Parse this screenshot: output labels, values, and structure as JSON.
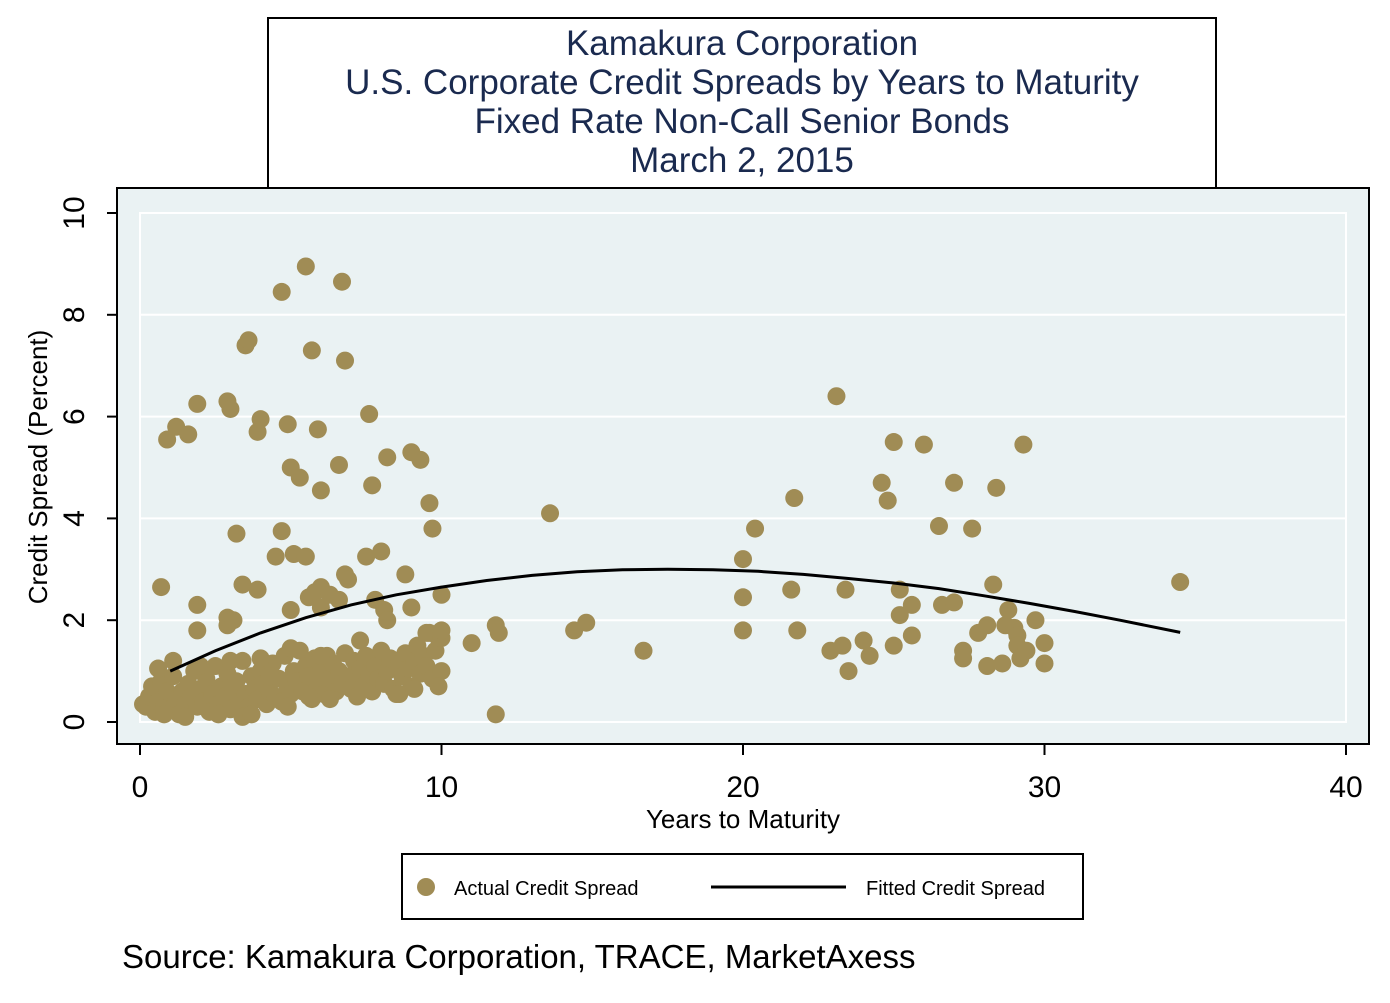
{
  "colors": {
    "plot_background": "#eaf2f3",
    "grid": "#ffffff",
    "points": "#a08c55",
    "line": "#000000",
    "title": "#1a2a4f",
    "frame": "#000000"
  },
  "chart_data": {
    "type": "scatter",
    "title": [
      "Kamakura Corporation",
      "U.S. Corporate Credit Spreads by Years to Maturity",
      "Fixed Rate Non-Call Senior Bonds",
      "March 2, 2015"
    ],
    "xlabel": "Years to Maturity",
    "ylabel": "Credit Spread (Percent)",
    "xlim": [
      0,
      40
    ],
    "ylim": [
      0,
      10
    ],
    "xticks": [
      0,
      10,
      20,
      30,
      40
    ],
    "yticks": [
      0,
      2,
      4,
      6,
      8,
      10
    ],
    "grid": true,
    "legend_position": "bottom",
    "legend": [
      "Actual Credit Spread",
      "Fitted Credit Spread"
    ],
    "note": "Source: Kamakura Corporation, TRACE, MarketAxess",
    "series": [
      {
        "name": "Actual Credit Spread",
        "type": "scatter",
        "points": [
          [
            0.1,
            0.35
          ],
          [
            0.2,
            0.3
          ],
          [
            0.3,
            0.5
          ],
          [
            0.4,
            0.7
          ],
          [
            0.5,
            0.2
          ],
          [
            0.6,
            0.4
          ],
          [
            0.7,
            0.8
          ],
          [
            0.8,
            0.3
          ],
          [
            0.9,
            0.6
          ],
          [
            1.0,
            0.25
          ],
          [
            1.1,
            0.9
          ],
          [
            1.2,
            0.45
          ],
          [
            1.3,
            0.15
          ],
          [
            1.4,
            0.6
          ],
          [
            1.5,
            0.35
          ],
          [
            1.6,
            0.75
          ],
          [
            1.7,
            0.5
          ],
          [
            1.8,
            1.0
          ],
          [
            1.9,
            0.3
          ],
          [
            2.0,
            0.65
          ],
          [
            2.1,
            0.4
          ],
          [
            2.2,
            0.85
          ],
          [
            2.3,
            0.2
          ],
          [
            2.4,
            0.55
          ],
          [
            2.5,
            1.1
          ],
          [
            2.6,
            0.35
          ],
          [
            2.7,
            0.7
          ],
          [
            2.8,
            0.5
          ],
          [
            2.9,
            0.95
          ],
          [
            3.0,
            0.25
          ],
          [
            3.1,
            0.6
          ],
          [
            3.2,
            0.8
          ],
          [
            3.3,
            0.4
          ],
          [
            3.4,
            1.2
          ],
          [
            3.5,
            0.55
          ],
          [
            3.6,
            0.3
          ],
          [
            3.7,
            0.9
          ],
          [
            3.8,
            0.65
          ],
          [
            3.9,
            0.45
          ],
          [
            4.0,
            1.0
          ],
          [
            4.1,
            0.75
          ],
          [
            4.2,
            0.35
          ],
          [
            4.3,
            0.6
          ],
          [
            4.4,
            1.15
          ],
          [
            4.5,
            0.5
          ],
          [
            4.6,
            0.85
          ],
          [
            4.7,
            0.4
          ],
          [
            4.8,
            1.3
          ],
          [
            4.9,
            0.7
          ],
          [
            5.0,
            0.55
          ],
          [
            5.1,
            1.0
          ],
          [
            5.2,
            0.8
          ],
          [
            5.3,
            1.4
          ],
          [
            5.4,
            0.6
          ],
          [
            5.5,
            1.1
          ],
          [
            5.6,
            0.9
          ],
          [
            5.7,
            0.45
          ],
          [
            5.8,
            1.25
          ],
          [
            5.9,
            0.7
          ],
          [
            6.0,
            1.0
          ],
          [
            6.1,
            0.55
          ],
          [
            6.2,
            1.3
          ],
          [
            6.3,
            0.85
          ],
          [
            6.4,
            1.15
          ],
          [
            6.5,
            0.6
          ],
          [
            6.6,
            1.0
          ],
          [
            6.7,
            0.75
          ],
          [
            6.8,
            1.35
          ],
          [
            6.9,
            0.9
          ],
          [
            7.0,
            0.65
          ],
          [
            7.1,
            1.2
          ],
          [
            7.2,
            0.8
          ],
          [
            7.3,
            1.05
          ],
          [
            7.4,
            0.7
          ],
          [
            7.5,
            1.3
          ],
          [
            7.6,
            0.95
          ],
          [
            7.7,
            0.6
          ],
          [
            7.8,
            1.1
          ],
          [
            7.9,
            0.85
          ],
          [
            8.0,
            1.4
          ],
          [
            8.1,
            0.75
          ],
          [
            8.2,
            1.0
          ],
          [
            8.3,
            1.25
          ],
          [
            8.4,
            0.65
          ],
          [
            8.5,
            0.55
          ],
          [
            8.6,
            1.15
          ],
          [
            8.7,
            0.9
          ],
          [
            8.8,
            1.35
          ],
          [
            8.9,
            1.05
          ],
          [
            9.0,
            0.7
          ],
          [
            9.1,
            1.2
          ],
          [
            9.2,
            1.5
          ],
          [
            9.3,
            0.95
          ],
          [
            9.4,
            1.3
          ],
          [
            9.5,
            1.1
          ],
          [
            9.6,
            1.75
          ],
          [
            9.7,
            0.85
          ],
          [
            9.8,
            1.4
          ],
          [
            9.9,
            1.65
          ],
          [
            10.0,
            1.0
          ],
          [
            0.6,
            1.05
          ],
          [
            1.1,
            1.2
          ],
          [
            2.0,
            1.1
          ],
          [
            3.0,
            1.2
          ],
          [
            4.0,
            1.25
          ],
          [
            5.0,
            1.45
          ],
          [
            6.0,
            1.3
          ],
          [
            0.8,
            0.15
          ],
          [
            1.5,
            0.1
          ],
          [
            2.6,
            0.15
          ],
          [
            3.4,
            0.1
          ],
          [
            3.7,
            0.15
          ],
          [
            4.9,
            0.3
          ],
          [
            5.6,
            0.5
          ],
          [
            6.3,
            0.45
          ],
          [
            7.2,
            0.5
          ],
          [
            8.6,
            0.55
          ],
          [
            9.1,
            0.65
          ],
          [
            9.9,
            0.7
          ],
          [
            4.3,
            0.9
          ],
          [
            0.7,
            2.65
          ],
          [
            1.9,
            1.8
          ],
          [
            1.9,
            2.3
          ],
          [
            2.9,
            1.9
          ],
          [
            2.9,
            2.05
          ],
          [
            3.1,
            2.0
          ],
          [
            3.2,
            3.7
          ],
          [
            3.4,
            2.7
          ],
          [
            3.9,
            2.6
          ],
          [
            4.5,
            3.25
          ],
          [
            4.7,
            3.75
          ],
          [
            5.0,
            2.2
          ],
          [
            5.1,
            3.3
          ],
          [
            5.5,
            3.25
          ],
          [
            5.6,
            2.45
          ],
          [
            5.8,
            2.55
          ],
          [
            6.0,
            2.65
          ],
          [
            6.0,
            2.25
          ],
          [
            6.3,
            2.5
          ],
          [
            6.6,
            2.4
          ],
          [
            6.8,
            2.9
          ],
          [
            6.9,
            2.8
          ],
          [
            7.3,
            1.6
          ],
          [
            7.5,
            3.25
          ],
          [
            7.8,
            2.4
          ],
          [
            8.0,
            3.35
          ],
          [
            8.1,
            2.2
          ],
          [
            8.2,
            2.0
          ],
          [
            8.8,
            2.9
          ],
          [
            9.0,
            2.25
          ],
          [
            9.5,
            1.75
          ],
          [
            10.0,
            1.65
          ],
          [
            10.0,
            2.5
          ],
          [
            10.0,
            1.8
          ],
          [
            0.9,
            5.55
          ],
          [
            1.2,
            5.8
          ],
          [
            1.6,
            5.65
          ],
          [
            1.9,
            6.25
          ],
          [
            2.9,
            6.3
          ],
          [
            3.0,
            6.15
          ],
          [
            3.5,
            7.4
          ],
          [
            3.6,
            7.5
          ],
          [
            3.9,
            5.7
          ],
          [
            4.0,
            5.95
          ],
          [
            4.7,
            8.45
          ],
          [
            4.9,
            5.85
          ],
          [
            5.0,
            5.0
          ],
          [
            5.3,
            4.8
          ],
          [
            5.5,
            8.95
          ],
          [
            5.7,
            7.3
          ],
          [
            5.9,
            5.75
          ],
          [
            6.0,
            4.55
          ],
          [
            6.6,
            5.05
          ],
          [
            6.7,
            8.65
          ],
          [
            6.8,
            7.1
          ],
          [
            7.6,
            6.05
          ],
          [
            7.7,
            4.65
          ],
          [
            8.2,
            5.2
          ],
          [
            9.0,
            5.3
          ],
          [
            9.3,
            5.15
          ],
          [
            9.6,
            4.3
          ],
          [
            9.7,
            3.8
          ],
          [
            11.0,
            1.55
          ],
          [
            11.8,
            1.9
          ],
          [
            11.9,
            1.75
          ],
          [
            11.8,
            0.15
          ],
          [
            13.6,
            4.1
          ],
          [
            14.4,
            1.8
          ],
          [
            14.8,
            1.95
          ],
          [
            16.7,
            1.4
          ],
          [
            20.0,
            3.2
          ],
          [
            20.0,
            2.45
          ],
          [
            20.0,
            1.8
          ],
          [
            20.4,
            3.8
          ],
          [
            21.6,
            2.6
          ],
          [
            21.7,
            4.4
          ],
          [
            21.8,
            1.8
          ],
          [
            22.9,
            1.4
          ],
          [
            23.1,
            6.4
          ],
          [
            23.3,
            1.5
          ],
          [
            23.4,
            2.6
          ],
          [
            23.5,
            1.0
          ],
          [
            24.0,
            1.6
          ],
          [
            24.2,
            1.3
          ],
          [
            24.6,
            4.7
          ],
          [
            24.8,
            4.35
          ],
          [
            25.0,
            5.5
          ],
          [
            25.0,
            1.5
          ],
          [
            25.2,
            2.6
          ],
          [
            25.2,
            2.1
          ],
          [
            25.6,
            2.3
          ],
          [
            25.6,
            1.7
          ],
          [
            26.0,
            5.45
          ],
          [
            26.5,
            3.85
          ],
          [
            26.6,
            2.3
          ],
          [
            27.0,
            4.7
          ],
          [
            27.0,
            2.35
          ],
          [
            27.3,
            1.4
          ],
          [
            27.3,
            1.25
          ],
          [
            27.6,
            3.8
          ],
          [
            27.8,
            1.75
          ],
          [
            28.1,
            1.9
          ],
          [
            28.1,
            1.1
          ],
          [
            28.3,
            2.7
          ],
          [
            28.4,
            4.6
          ],
          [
            28.6,
            1.15
          ],
          [
            28.7,
            1.9
          ],
          [
            28.8,
            2.2
          ],
          [
            29.0,
            1.85
          ],
          [
            29.1,
            1.7
          ],
          [
            29.1,
            1.5
          ],
          [
            29.2,
            1.25
          ],
          [
            29.3,
            5.45
          ],
          [
            29.4,
            1.4
          ],
          [
            29.7,
            2.0
          ],
          [
            30.0,
            1.55
          ],
          [
            30.0,
            1.15
          ],
          [
            34.5,
            2.75
          ]
        ]
      },
      {
        "name": "Fitted Credit Spread",
        "type": "line",
        "points": [
          [
            1.0,
            1.0
          ],
          [
            2.5,
            1.4
          ],
          [
            4.0,
            1.75
          ],
          [
            5.5,
            2.05
          ],
          [
            7.0,
            2.3
          ],
          [
            8.5,
            2.5
          ],
          [
            10.0,
            2.65
          ],
          [
            11.5,
            2.78
          ],
          [
            13.0,
            2.88
          ],
          [
            14.5,
            2.95
          ],
          [
            16.0,
            2.99
          ],
          [
            17.5,
            3.0
          ],
          [
            19.0,
            2.99
          ],
          [
            20.5,
            2.96
          ],
          [
            22.0,
            2.9
          ],
          [
            23.5,
            2.82
          ],
          [
            25.0,
            2.73
          ],
          [
            26.5,
            2.62
          ],
          [
            28.0,
            2.48
          ],
          [
            29.5,
            2.33
          ],
          [
            31.0,
            2.17
          ],
          [
            32.5,
            2.0
          ],
          [
            34.5,
            1.76
          ]
        ]
      }
    ]
  }
}
